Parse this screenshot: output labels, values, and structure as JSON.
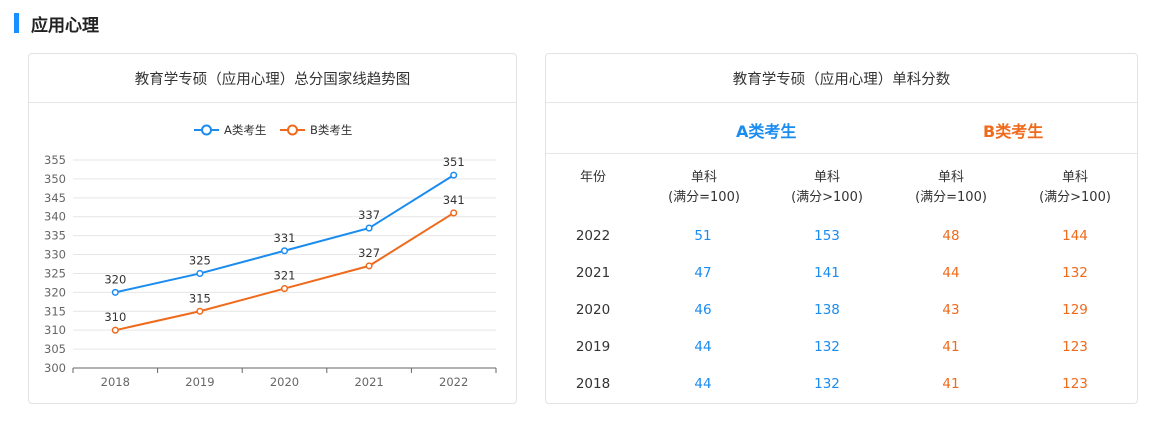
{
  "section": {
    "title": "应用心理"
  },
  "left_card": {
    "title": "教育学专硕（应用心理）总分国家线趋势图"
  },
  "chart_data": {
    "type": "line",
    "title": "教育学专硕（应用心理）总分国家线趋势图",
    "categories": [
      "2018",
      "2019",
      "2020",
      "2021",
      "2022"
    ],
    "series": [
      {
        "name": "A类考生",
        "color": "#1a8cf0",
        "values": [
          320,
          325,
          331,
          337,
          351
        ]
      },
      {
        "name": "B类考生",
        "color": "#f06a1c",
        "values": [
          310,
          315,
          321,
          327,
          341
        ]
      }
    ],
    "yticks": [
      300,
      305,
      310,
      315,
      320,
      325,
      330,
      335,
      340,
      345,
      350,
      355
    ],
    "ylim": [
      300,
      355
    ],
    "legend": "top-center",
    "grid": true,
    "data_labels": true
  },
  "right_card": {
    "title": "教育学专硕（应用心理）单科分数",
    "type_a": "A类考生",
    "type_b": "B类考生",
    "headers": {
      "year": "年份",
      "single": "单科",
      "full100": "(满分=100)",
      "fullgt100": "(满分>100)"
    },
    "rows": [
      {
        "year": "2022",
        "a100": "51",
        "agt": "153",
        "b100": "48",
        "bgt": "144"
      },
      {
        "year": "2021",
        "a100": "47",
        "agt": "141",
        "b100": "44",
        "bgt": "132"
      },
      {
        "year": "2020",
        "a100": "46",
        "agt": "138",
        "b100": "43",
        "bgt": "129"
      },
      {
        "year": "2019",
        "a100": "44",
        "agt": "132",
        "b100": "41",
        "bgt": "123"
      },
      {
        "year": "2018",
        "a100": "44",
        "agt": "132",
        "b100": "41",
        "bgt": "123"
      }
    ]
  },
  "colors": {
    "accent": "#1890ff",
    "series_a": "#1a8cf0",
    "series_b": "#f06a1c"
  }
}
